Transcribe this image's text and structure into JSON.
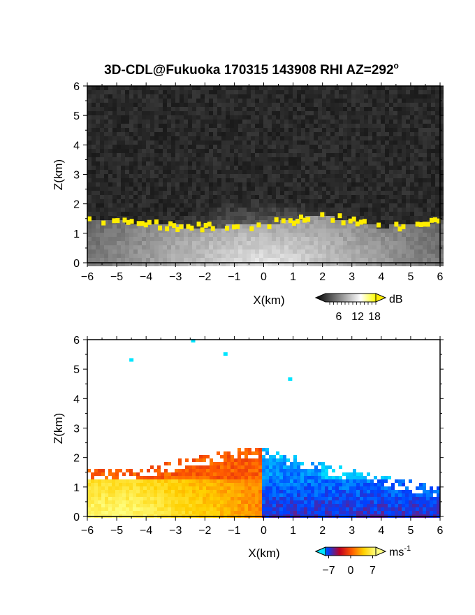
{
  "title": "3D-CDL@Fukuoka 170315 143908 RHI AZ=292",
  "title_degree": "o",
  "chart_data": [
    {
      "type": "heatmap",
      "panel": "intensity",
      "xlabel": "X(km)",
      "ylabel": "Z(km)",
      "xlim": [
        -6,
        6
      ],
      "ylim": [
        0,
        6
      ],
      "x_ticks": [
        -6,
        -5,
        -4,
        -3,
        -2,
        -1,
        0,
        1,
        2,
        3,
        4,
        5,
        6
      ],
      "y_ticks": [
        0,
        1,
        2,
        3,
        4,
        5,
        6
      ],
      "colorbar": {
        "unit": "dB",
        "ticks": [
          6,
          12,
          18
        ],
        "colors": [
          "#000000",
          "#555555",
          "#aaaaaa",
          "#ffffff",
          "#ffff00"
        ]
      },
      "background_color": "#2a2a2a",
      "highlight_color": "#ffee00",
      "features": {
        "bright_fan_peak_km": 2.2,
        "layer_top_km": [
          1.5,
          1.3,
          1.2,
          1.3,
          1.6,
          1.2,
          1.4
        ],
        "layer_x_km": [
          -6,
          -4,
          -2,
          0,
          2,
          4,
          6
        ]
      }
    },
    {
      "type": "heatmap",
      "panel": "doppler_velocity",
      "xlabel": "X(km)",
      "ylabel": "Z(km)",
      "xlim": [
        -6,
        6
      ],
      "ylim": [
        0,
        6
      ],
      "x_ticks": [
        -6,
        -5,
        -4,
        -3,
        -2,
        -1,
        0,
        1,
        2,
        3,
        4,
        5,
        6
      ],
      "y_ticks": [
        0,
        1,
        2,
        3,
        4,
        5,
        6
      ],
      "colorbar": {
        "unit": "ms",
        "unit_exponent": "-1",
        "ticks": [
          -7,
          0,
          7
        ],
        "range": [
          -8,
          8
        ],
        "colors": [
          "#00e5ff",
          "#0040ff",
          "#c00020",
          "#ff5a00",
          "#ffd000",
          "#ffff80"
        ]
      },
      "features": {
        "echo_top_km": [
          1.6,
          1.6,
          2.0,
          2.3,
          2.4,
          1.9,
          1.6,
          1.3,
          1.0
        ],
        "echo_top_x_km": [
          -6,
          -4.5,
          -2.5,
          -1,
          0,
          1.5,
          3,
          4.5,
          6
        ],
        "isolated_points": [
          [
            -4.5,
            5.3
          ],
          [
            -2.4,
            5.95
          ],
          [
            -1.3,
            5.5
          ],
          [
            0.9,
            4.65
          ]
        ]
      }
    }
  ]
}
